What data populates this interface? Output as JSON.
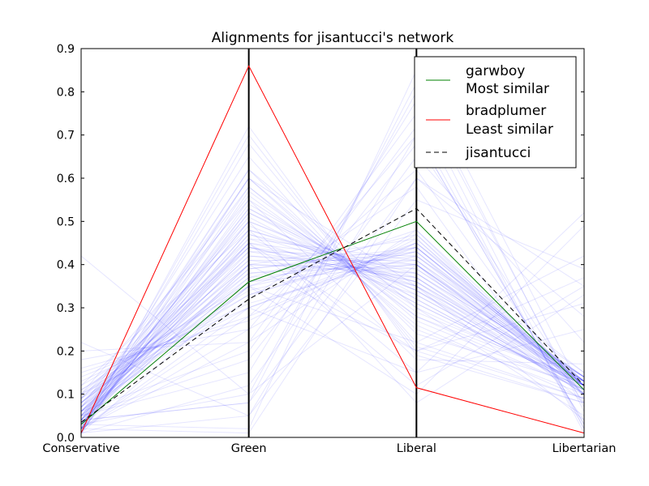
{
  "chart_data": {
    "type": "line",
    "title": "Alignments for jisantucci's network",
    "categories": [
      "Conservative",
      "Green",
      "Liberal",
      "Libertarian"
    ],
    "ylim": [
      0,
      0.9
    ],
    "yticks": [
      "0.0",
      "0.1",
      "0.2",
      "0.3",
      "0.4",
      "0.5",
      "0.6",
      "0.7",
      "0.8",
      "0.9"
    ],
    "grid": false,
    "legend_position": "top-right",
    "series": [
      {
        "name": "garwboy",
        "subtitle": "Most similar",
        "color": "#008000",
        "style": "solid",
        "values": [
          0.03,
          0.36,
          0.5,
          0.11
        ]
      },
      {
        "name": "bradplumer",
        "subtitle": "Least similar",
        "color": "#ff0000",
        "style": "solid",
        "values": [
          0.01,
          0.86,
          0.115,
          0.01
        ]
      },
      {
        "name": "jisantucci",
        "subtitle": "",
        "color": "#000000",
        "style": "dashed",
        "values": [
          0.035,
          0.32,
          0.53,
          0.12
        ]
      }
    ],
    "background_series_color": "#0000ff",
    "background_series": [
      [
        0.02,
        0.45,
        0.4,
        0.12
      ],
      [
        0.03,
        0.5,
        0.35,
        0.1
      ],
      [
        0.05,
        0.38,
        0.42,
        0.15
      ],
      [
        0.01,
        0.55,
        0.3,
        0.12
      ],
      [
        0.04,
        0.6,
        0.25,
        0.1
      ],
      [
        0.08,
        0.4,
        0.38,
        0.14
      ],
      [
        0.1,
        0.3,
        0.45,
        0.15
      ],
      [
        0.02,
        0.7,
        0.2,
        0.08
      ],
      [
        0.06,
        0.42,
        0.4,
        0.12
      ],
      [
        0.12,
        0.35,
        0.43,
        0.1
      ],
      [
        0.03,
        0.48,
        0.36,
        0.13
      ],
      [
        0.05,
        0.52,
        0.32,
        0.11
      ],
      [
        0.07,
        0.36,
        0.44,
        0.13
      ],
      [
        0.02,
        0.62,
        0.24,
        0.12
      ],
      [
        0.09,
        0.41,
        0.37,
        0.13
      ],
      [
        0.04,
        0.44,
        0.39,
        0.13
      ],
      [
        0.15,
        0.28,
        0.45,
        0.12
      ],
      [
        0.01,
        0.58,
        0.28,
        0.13
      ],
      [
        0.03,
        0.46,
        0.41,
        0.1
      ],
      [
        0.06,
        0.39,
        0.43,
        0.12
      ],
      [
        0.11,
        0.33,
        0.44,
        0.12
      ],
      [
        0.02,
        0.53,
        0.33,
        0.12
      ],
      [
        0.05,
        0.47,
        0.35,
        0.13
      ],
      [
        0.08,
        0.37,
        0.41,
        0.14
      ],
      [
        0.04,
        0.65,
        0.22,
        0.09
      ],
      [
        0.18,
        0.25,
        0.47,
        0.1
      ],
      [
        0.03,
        0.43,
        0.42,
        0.12
      ],
      [
        0.07,
        0.49,
        0.34,
        0.1
      ],
      [
        0.02,
        0.4,
        0.46,
        0.12
      ],
      [
        0.06,
        0.51,
        0.31,
        0.12
      ],
      [
        0.1,
        0.44,
        0.36,
        0.1
      ],
      [
        0.01,
        0.57,
        0.29,
        0.13
      ],
      [
        0.05,
        0.35,
        0.48,
        0.12
      ],
      [
        0.09,
        0.46,
        0.33,
        0.12
      ],
      [
        0.04,
        0.39,
        0.44,
        0.13
      ],
      [
        0.13,
        0.31,
        0.42,
        0.14
      ],
      [
        0.02,
        0.68,
        0.21,
        0.09
      ],
      [
        0.06,
        0.42,
        0.38,
        0.14
      ],
      [
        0.03,
        0.54,
        0.32,
        0.11
      ],
      [
        0.08,
        0.38,
        0.4,
        0.14
      ],
      [
        0.2,
        0.22,
        0.48,
        0.1
      ],
      [
        0.04,
        0.48,
        0.37,
        0.11
      ],
      [
        0.07,
        0.44,
        0.35,
        0.14
      ],
      [
        0.02,
        0.6,
        0.27,
        0.11
      ],
      [
        0.05,
        0.41,
        0.41,
        0.13
      ],
      [
        0.11,
        0.36,
        0.4,
        0.13
      ],
      [
        0.03,
        0.5,
        0.34,
        0.13
      ],
      [
        0.09,
        0.33,
        0.45,
        0.13
      ],
      [
        0.01,
        0.72,
        0.19,
        0.08
      ],
      [
        0.06,
        0.45,
        0.36,
        0.13
      ],
      [
        0.04,
        0.37,
        0.47,
        0.12
      ],
      [
        0.14,
        0.3,
        0.44,
        0.12
      ],
      [
        0.02,
        0.52,
        0.34,
        0.12
      ],
      [
        0.07,
        0.4,
        0.39,
        0.14
      ],
      [
        0.05,
        0.56,
        0.28,
        0.11
      ],
      [
        0.1,
        0.34,
        0.43,
        0.13
      ],
      [
        0.03,
        0.47,
        0.38,
        0.12
      ],
      [
        0.08,
        0.43,
        0.37,
        0.12
      ],
      [
        0.16,
        0.27,
        0.46,
        0.11
      ],
      [
        0.04,
        0.53,
        0.31,
        0.12
      ],
      [
        0.02,
        0.01,
        0.6,
        0.35
      ],
      [
        0.42,
        0.1,
        0.4,
        0.08
      ],
      [
        0.03,
        0.02,
        0.85,
        0.1
      ],
      [
        0.05,
        0.15,
        0.78,
        0.02
      ],
      [
        0.22,
        0.05,
        0.7,
        0.03
      ],
      [
        0.01,
        0.12,
        0.65,
        0.22
      ],
      [
        0.04,
        0.08,
        0.82,
        0.06
      ],
      [
        0.12,
        0.48,
        0.15,
        0.25
      ],
      [
        0.03,
        0.62,
        0.3,
        0.05
      ],
      [
        0.02,
        0.3,
        0.15,
        0.52
      ],
      [
        0.06,
        0.2,
        0.72,
        0.02
      ],
      [
        0.01,
        0.05,
        0.55,
        0.39
      ],
      [
        0.08,
        0.45,
        0.12,
        0.35
      ],
      [
        0.1,
        0.55,
        0.18,
        0.17
      ],
      [
        0.02,
        0.22,
        0.75,
        0.01
      ],
      [
        0.04,
        0.08,
        0.6,
        0.28
      ],
      [
        0.03,
        0.4,
        0.2,
        0.37
      ],
      [
        0.06,
        0.35,
        0.1,
        0.49
      ],
      [
        0.02,
        0.25,
        0.7,
        0.03
      ],
      [
        0.05,
        0.18,
        0.68,
        0.09
      ],
      [
        0.01,
        0.35,
        0.22,
        0.42
      ],
      [
        0.07,
        0.58,
        0.26,
        0.09
      ],
      [
        0.03,
        0.1,
        0.8,
        0.07
      ],
      [
        0.09,
        0.5,
        0.08,
        0.33
      ],
      [
        0.02,
        0.28,
        0.62,
        0.08
      ],
      [
        0.04,
        0.45,
        0.2,
        0.31
      ],
      [
        0.06,
        0.32,
        0.58,
        0.04
      ],
      [
        0.01,
        0.6,
        0.35,
        0.04
      ]
    ]
  }
}
